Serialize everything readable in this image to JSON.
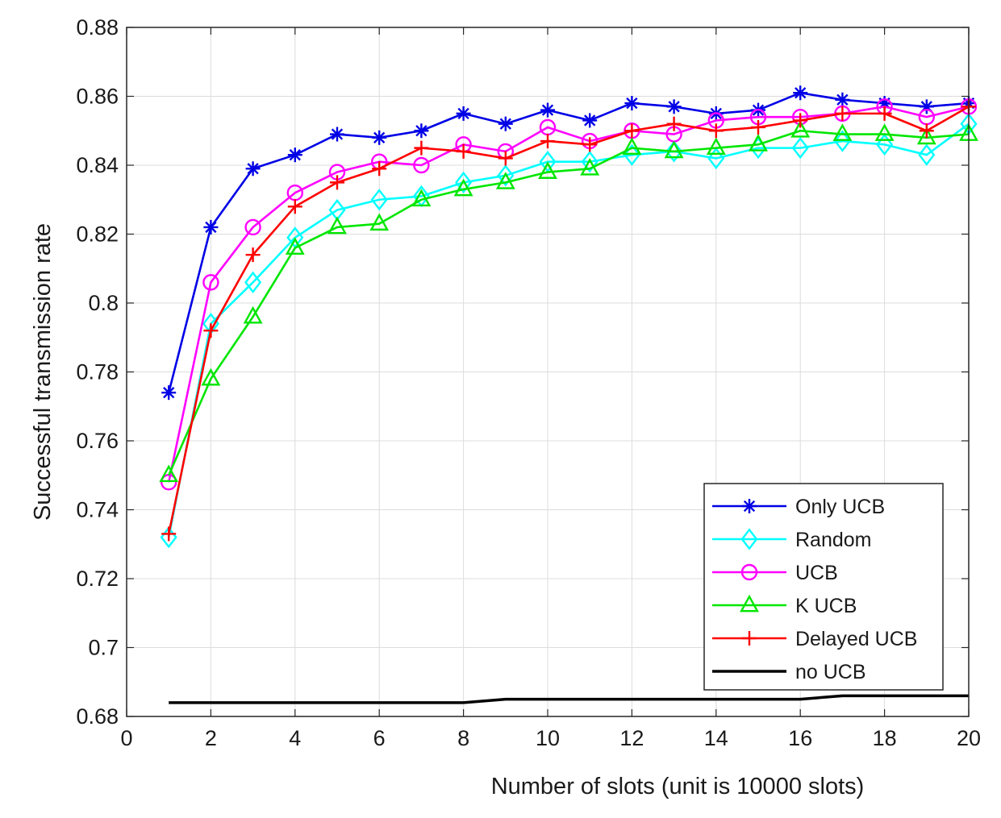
{
  "chart_data": {
    "type": "line",
    "title": "",
    "xlabel": "Number of slots (unit is 10000 slots)",
    "ylabel": "Successful transmission rate",
    "xlim": [
      0,
      20
    ],
    "ylim": [
      0.68,
      0.88
    ],
    "x_ticks": [
      "0",
      "2",
      "4",
      "6",
      "8",
      "10",
      "12",
      "14",
      "16",
      "18",
      "20"
    ],
    "y_ticks": [
      "0.68",
      "0.7",
      "0.72",
      "0.74",
      "0.76",
      "0.78",
      "0.8",
      "0.82",
      "0.84",
      "0.86",
      "0.88"
    ],
    "grid": true,
    "legend_position": "bottom-right",
    "x": [
      1,
      2,
      3,
      4,
      5,
      6,
      7,
      8,
      9,
      10,
      11,
      12,
      13,
      14,
      15,
      16,
      17,
      18,
      19,
      20
    ],
    "series": [
      {
        "name": "Only UCB",
        "color": "#0000e6",
        "marker": "asterisk",
        "values": [
          0.774,
          0.822,
          0.839,
          0.843,
          0.849,
          0.848,
          0.85,
          0.855,
          0.852,
          0.856,
          0.853,
          0.858,
          0.857,
          0.855,
          0.856,
          0.861,
          0.859,
          0.858,
          0.857,
          0.858
        ]
      },
      {
        "name": "Random",
        "color": "#00ffff",
        "marker": "diamond",
        "values": [
          0.732,
          0.794,
          0.806,
          0.819,
          0.827,
          0.83,
          0.831,
          0.835,
          0.837,
          0.841,
          0.841,
          0.843,
          0.844,
          0.842,
          0.845,
          0.845,
          0.847,
          0.846,
          0.843,
          0.852
        ]
      },
      {
        "name": "UCB",
        "color": "#ff00ff",
        "marker": "circle",
        "values": [
          0.748,
          0.806,
          0.822,
          0.832,
          0.838,
          0.841,
          0.84,
          0.846,
          0.844,
          0.851,
          0.847,
          0.85,
          0.849,
          0.853,
          0.854,
          0.854,
          0.855,
          0.857,
          0.854,
          0.857
        ]
      },
      {
        "name": "K UCB",
        "color": "#00e600",
        "marker": "triangle",
        "values": [
          0.75,
          0.778,
          0.796,
          0.816,
          0.822,
          0.823,
          0.83,
          0.833,
          0.835,
          0.838,
          0.839,
          0.845,
          0.844,
          0.845,
          0.846,
          0.85,
          0.849,
          0.849,
          0.848,
          0.849
        ]
      },
      {
        "name": "Delayed UCB",
        "color": "#ff0000",
        "marker": "plus",
        "values": [
          0.733,
          0.792,
          0.814,
          0.828,
          0.835,
          0.839,
          0.845,
          0.844,
          0.842,
          0.847,
          0.846,
          0.85,
          0.852,
          0.85,
          0.851,
          0.853,
          0.855,
          0.855,
          0.85,
          0.857
        ]
      },
      {
        "name": "no UCB",
        "color": "#000000",
        "marker": "none",
        "values": [
          0.684,
          0.684,
          0.684,
          0.684,
          0.684,
          0.684,
          0.684,
          0.684,
          0.685,
          0.685,
          0.685,
          0.685,
          0.685,
          0.685,
          0.685,
          0.685,
          0.686,
          0.686,
          0.686,
          0.686
        ]
      }
    ]
  }
}
